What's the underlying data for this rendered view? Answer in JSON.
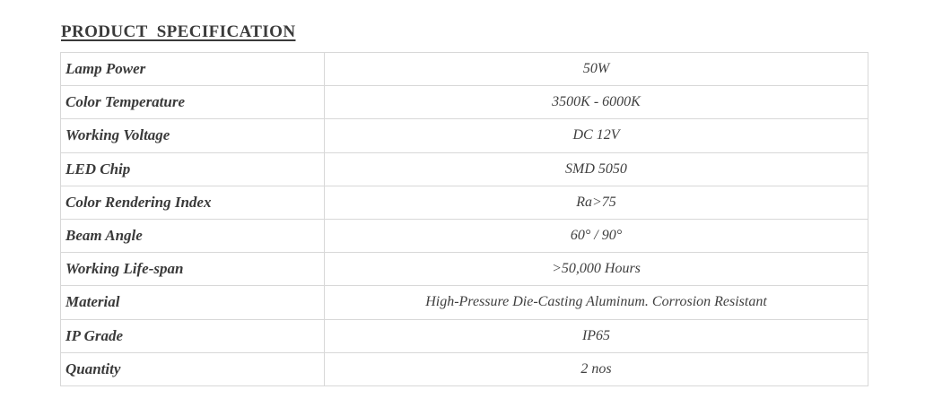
{
  "heading": {
    "title": "PRODUCT  SPECIFICATION"
  },
  "table": {
    "rows": [
      {
        "label": "Lamp Power",
        "value": "50W"
      },
      {
        "label": "Color Temperature",
        "value": "3500K - 6000K"
      },
      {
        "label": "Working Voltage",
        "value": "DC 12V"
      },
      {
        "label": "LED Chip",
        "value": "SMD 5050"
      },
      {
        "label": "Color Rendering Index",
        "value": "Ra>75"
      },
      {
        "label": "Beam Angle",
        "value": "60° / 90°"
      },
      {
        "label": "Working Life-span",
        "value": ">50,000 Hours"
      },
      {
        "label": "Material",
        "value": "High-Pressure Die-Casting Aluminum. Corrosion Resistant"
      },
      {
        "label": "IP Grade",
        "value": "IP65"
      },
      {
        "label": "Quantity",
        "value": "2 nos"
      }
    ]
  },
  "colors": {
    "text": "#3a3a3a",
    "value_text": "#404040",
    "border": "#d8d8d8",
    "background": "#ffffff"
  }
}
